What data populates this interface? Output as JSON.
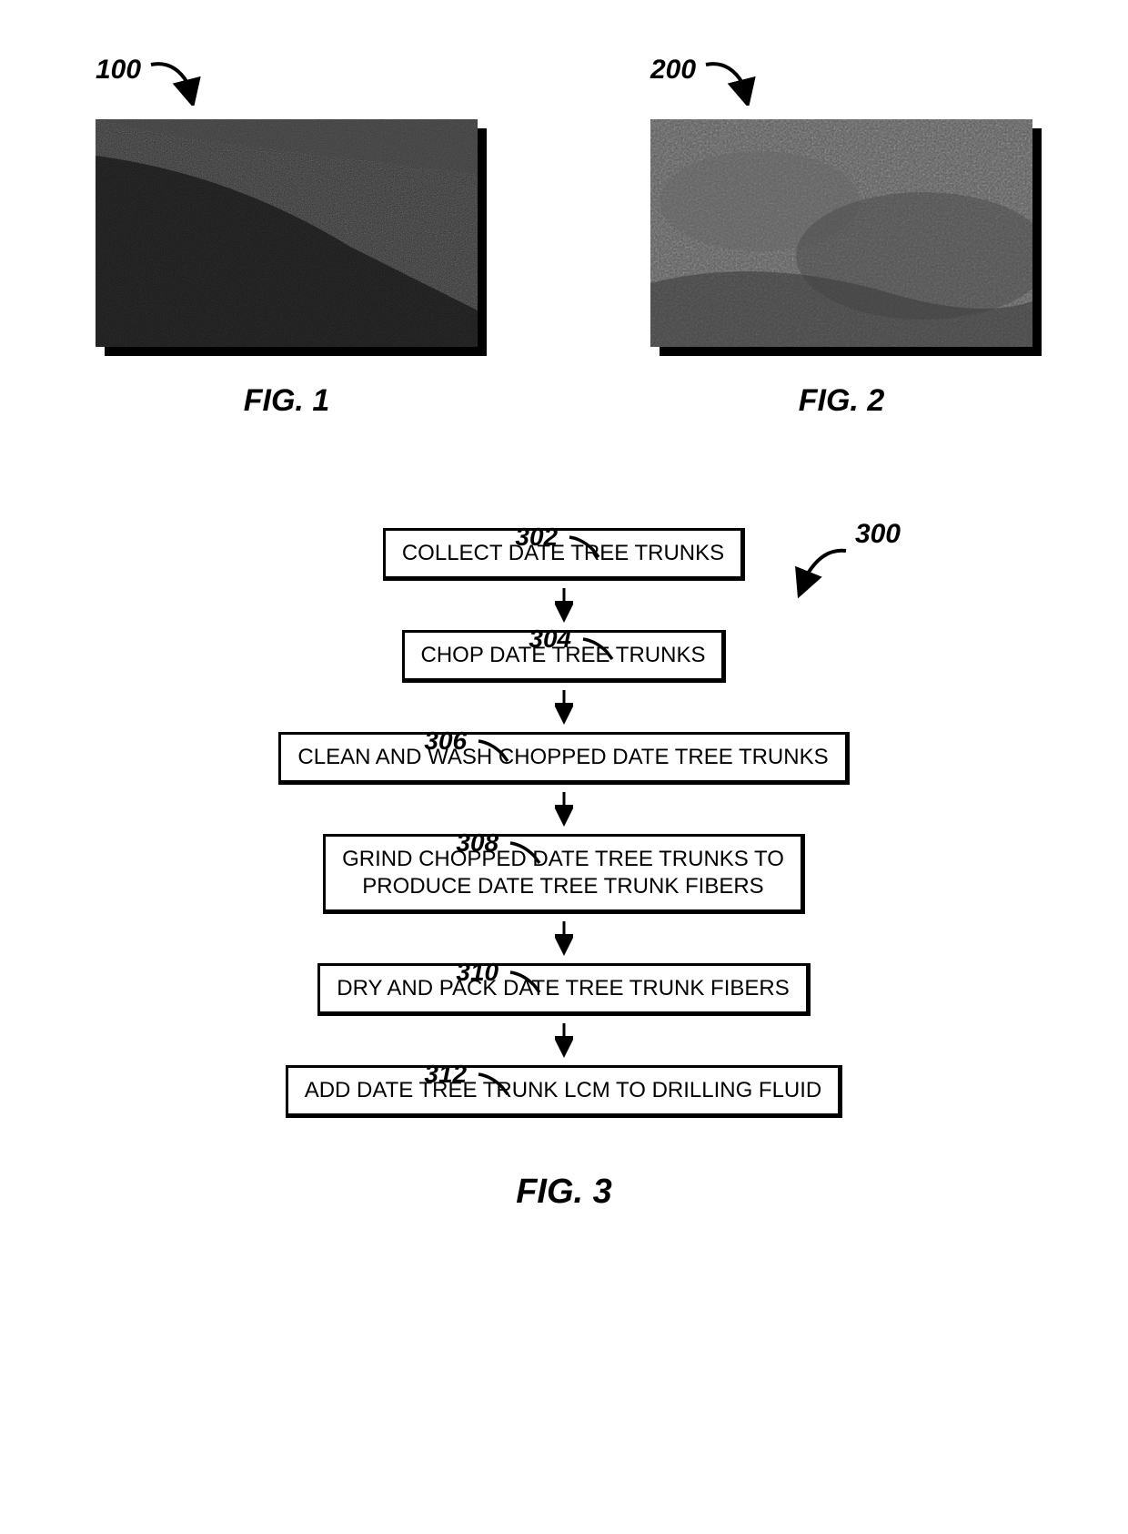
{
  "figures": {
    "fig1": {
      "ref": "100",
      "caption": "FIG. 1"
    },
    "fig2": {
      "ref": "200",
      "caption": "FIG. 2"
    },
    "fig3": {
      "ref": "300",
      "caption": "FIG. 3"
    }
  },
  "flowchart": {
    "type": "flowchart",
    "arrow_length": 42,
    "box_border_color": "#000000",
    "box_bg_color": "#ffffff",
    "font_family": "Arial",
    "step_font_size": 24,
    "label_font_size": 28,
    "steps": [
      {
        "ref": "302",
        "text": "COLLECT DATE TREE TRUNKS",
        "label_left_offset": 260
      },
      {
        "ref": "304",
        "text": "CHOP DATE TREE TRUNKS",
        "label_left_offset": 275
      },
      {
        "ref": "306",
        "text": "CLEAN AND WASH CHOPPED DATE TREE TRUNKS",
        "label_left_offset": 160
      },
      {
        "ref": "308",
        "text": "GRIND CHOPPED DATE TREE TRUNKS TO\nPRODUCE DATE TREE TRUNK FIBERS",
        "label_left_offset": 195
      },
      {
        "ref": "310",
        "text": "DRY AND PACK DATE TREE TRUNK FIBERS",
        "label_left_offset": 195
      },
      {
        "ref": "312",
        "text": "ADD DATE TREE TRUNK LCM TO DRILLING FLUID",
        "label_left_offset": 160
      }
    ]
  },
  "colors": {
    "black": "#000000",
    "white": "#ffffff",
    "photo_gray_dark": "#3a3a3a",
    "photo_gray_mid": "#6b6b6b"
  }
}
